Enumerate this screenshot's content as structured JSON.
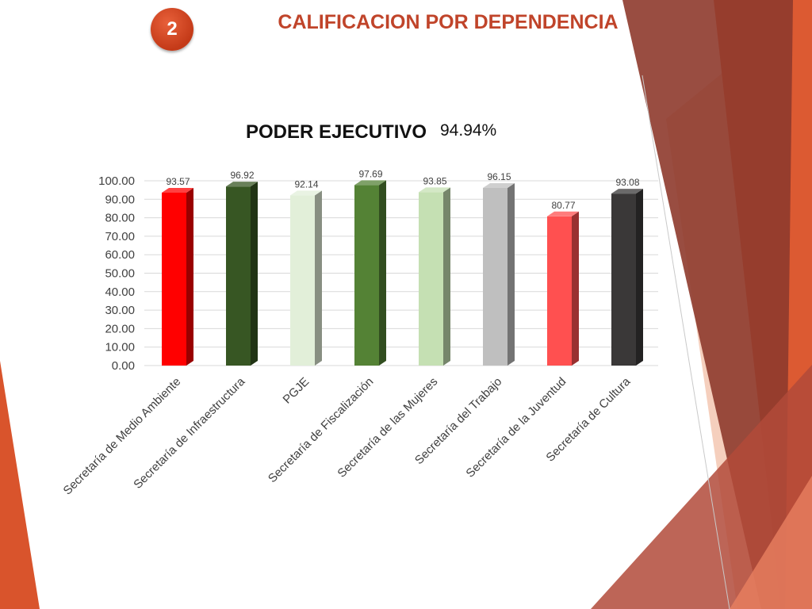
{
  "slide": {
    "badge_number": "2",
    "title": "CALIFICACION POR DEPENDENCIA",
    "accent_color": "#c0442a"
  },
  "chart_title": "PODER EJECUTIVO",
  "chart_total": "94.94%",
  "chart_data": {
    "type": "bar",
    "style": "3d-column",
    "categories": [
      "Secretaría de Medio Ambiente",
      "Secretaría de Infraestructura",
      "PGJE",
      "Secretaría de Fiscalización",
      "Secretaría de las Mujeres",
      "Secretaría del Trabajo",
      "Secretaría de la Juventud",
      "Secretaría de Cultura"
    ],
    "values": [
      93.57,
      96.92,
      92.14,
      97.69,
      93.85,
      96.15,
      80.77,
      93.08
    ],
    "data_labels": [
      "93.57",
      "96.92",
      "92.14",
      "97.69",
      "93.85",
      "96.15",
      "80.77",
      "93.08"
    ],
    "colors": [
      "#ff0000",
      "#375623",
      "#e2efd9",
      "#548235",
      "#c5e0b3",
      "#bfbfbf",
      "#ff5050",
      "#3a3838"
    ],
    "y_ticks": [
      "100.00",
      "90.00",
      "80.00",
      "70.00",
      "60.00",
      "50.00",
      "40.00",
      "30.00",
      "20.00",
      "10.00",
      "0.00"
    ],
    "ylim": [
      0,
      100
    ],
    "grid": true,
    "legend": "none"
  }
}
